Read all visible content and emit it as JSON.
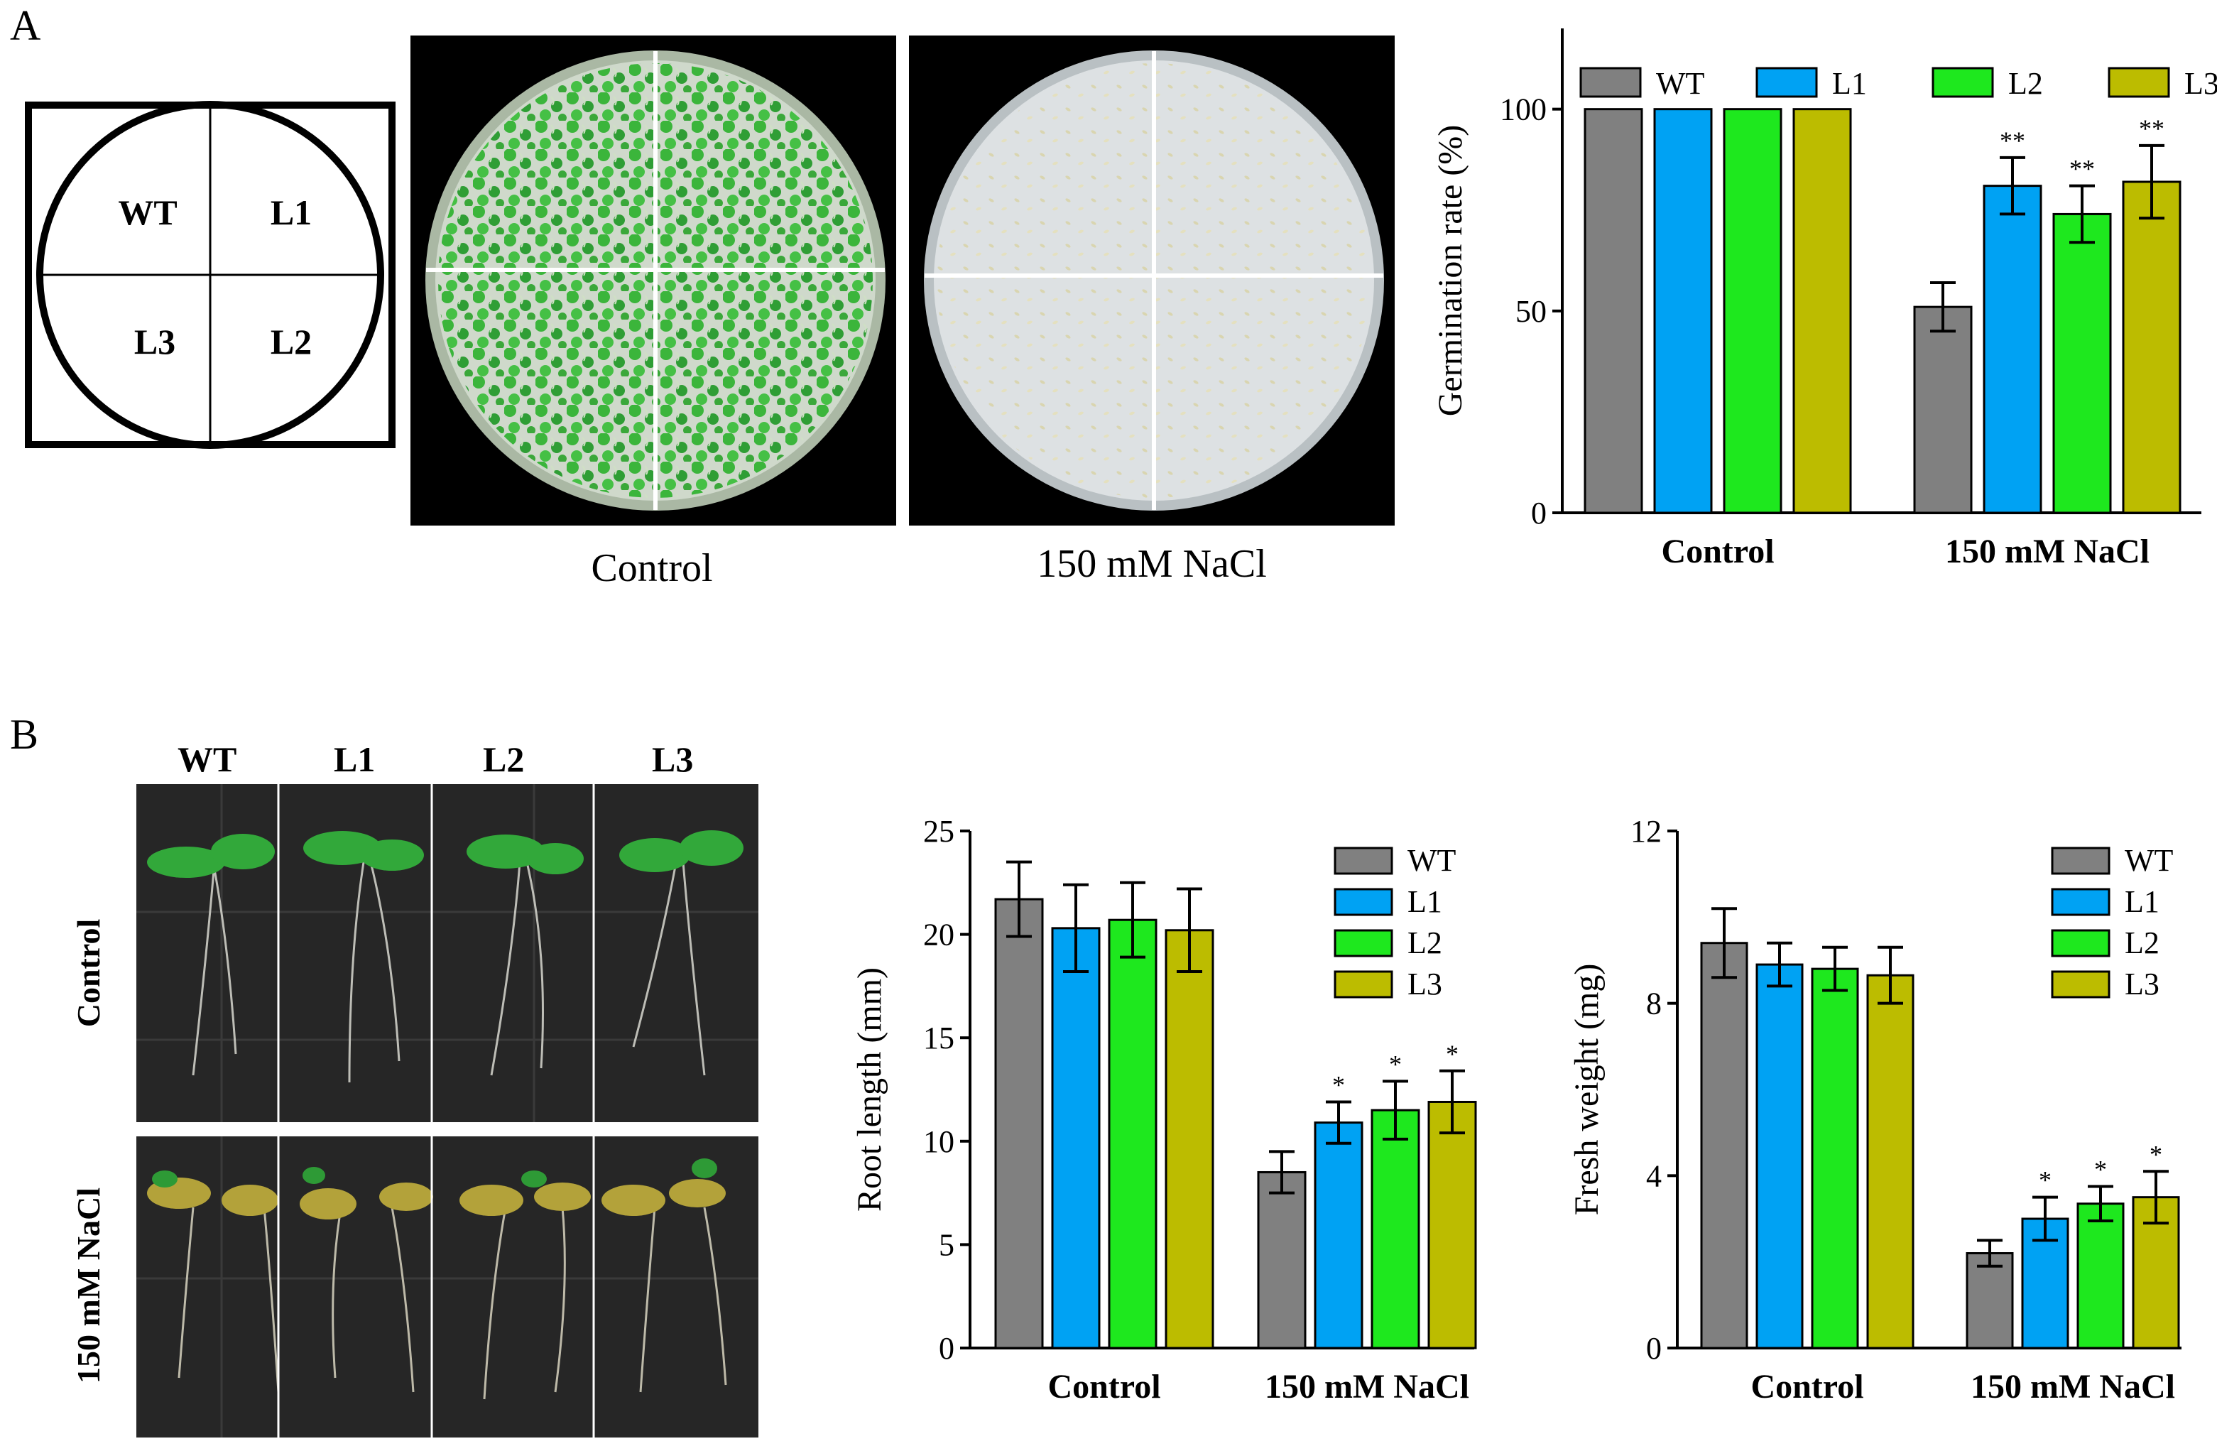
{
  "colors": {
    "WT": "#808080",
    "L1": "#00a2f3",
    "L2": "#1ee81e",
    "L3": "#bcbc00",
    "photo_bg": "#000000",
    "agar": "#dfe3e0",
    "seedling": "#3bb53b",
    "seedling_dark": "#2f8f2f"
  },
  "panel_a": {
    "letter": "A",
    "diagram": {
      "quadrants": [
        "WT",
        "L1",
        "L3",
        "L2"
      ]
    },
    "photo_captions": [
      "Control",
      "150 mM NaCl"
    ]
  },
  "panel_b": {
    "letter": "B",
    "photo_column_labels": [
      "WT",
      "L1",
      "L2",
      "L3"
    ],
    "photo_row_labels": [
      "Control",
      "150 mM NaCl"
    ]
  },
  "chart_data": [
    {
      "id": "germination",
      "type": "bar",
      "title": "",
      "xlabel": "",
      "ylabel": "Germination rate (%)",
      "ylim": [
        0,
        120
      ],
      "yticks": [
        0,
        50,
        100
      ],
      "categories": [
        "Control",
        "150 mM NaCl"
      ],
      "legend_position": "top",
      "series": [
        {
          "name": "WT",
          "values": [
            100,
            51
          ],
          "errors": [
            0,
            6
          ],
          "sig": [
            "",
            ""
          ]
        },
        {
          "name": "L1",
          "values": [
            100,
            81
          ],
          "errors": [
            0,
            7
          ],
          "sig": [
            "",
            "**"
          ]
        },
        {
          "name": "L2",
          "values": [
            100,
            74
          ],
          "errors": [
            0,
            7
          ],
          "sig": [
            "",
            "**"
          ]
        },
        {
          "name": "L3",
          "values": [
            100,
            82
          ],
          "errors": [
            0,
            9
          ],
          "sig": [
            "",
            "**"
          ]
        }
      ]
    },
    {
      "id": "root_length",
      "type": "bar",
      "title": "",
      "xlabel": "",
      "ylabel": "Root length (mm)",
      "ylim": [
        0,
        25
      ],
      "yticks": [
        0,
        5,
        10,
        15,
        20,
        25
      ],
      "categories": [
        "Control",
        "150 mM NaCl"
      ],
      "legend_position": "top-right",
      "series": [
        {
          "name": "WT",
          "values": [
            21.7,
            8.5
          ],
          "errors": [
            1.8,
            1.0
          ],
          "sig": [
            "",
            ""
          ]
        },
        {
          "name": "L1",
          "values": [
            20.3,
            10.9
          ],
          "errors": [
            2.1,
            1.0
          ],
          "sig": [
            "",
            "*"
          ]
        },
        {
          "name": "L2",
          "values": [
            20.7,
            11.5
          ],
          "errors": [
            1.8,
            1.4
          ],
          "sig": [
            "",
            "*"
          ]
        },
        {
          "name": "L3",
          "values": [
            20.2,
            11.9
          ],
          "errors": [
            2.0,
            1.5
          ],
          "sig": [
            "",
            "*"
          ]
        }
      ]
    },
    {
      "id": "fresh_weight",
      "type": "bar",
      "title": "",
      "xlabel": "",
      "ylabel": "Fresh weight (mg)",
      "ylim": [
        0,
        12
      ],
      "yticks": [
        0,
        4,
        8,
        12
      ],
      "categories": [
        "Control",
        "150 mM NaCl"
      ],
      "legend_position": "top-right",
      "series": [
        {
          "name": "WT",
          "values": [
            9.4,
            2.2
          ],
          "errors": [
            0.8,
            0.3
          ],
          "sig": [
            "",
            ""
          ]
        },
        {
          "name": "L1",
          "values": [
            8.9,
            3.0
          ],
          "errors": [
            0.5,
            0.5
          ],
          "sig": [
            "",
            "*"
          ]
        },
        {
          "name": "L2",
          "values": [
            8.8,
            3.35
          ],
          "errors": [
            0.5,
            0.4
          ],
          "sig": [
            "",
            "*"
          ]
        },
        {
          "name": "L3",
          "values": [
            8.65,
            3.5
          ],
          "errors": [
            0.65,
            0.6
          ],
          "sig": [
            "",
            "*"
          ]
        }
      ]
    }
  ]
}
